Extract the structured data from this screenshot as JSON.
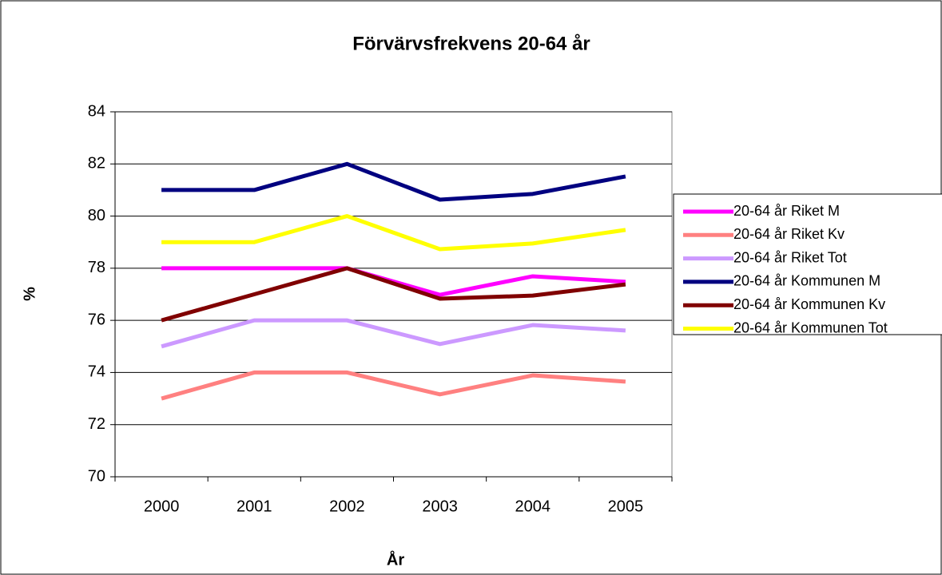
{
  "chart_data": {
    "type": "line",
    "title": "Förvärvsfrekvens 20-64 år",
    "x_label": "År",
    "y_label": "%",
    "categories": [
      "2000",
      "2001",
      "2002",
      "2003",
      "2004",
      "2005"
    ],
    "series": [
      {
        "name": "20-64 år Riket M",
        "color": "#ff00ff",
        "values": [
          78,
          78,
          78,
          76.98,
          77.69,
          77.48
        ]
      },
      {
        "name": "20-64 år Riket Kv",
        "color": "#ff8080",
        "values": [
          73,
          74,
          74,
          73.16,
          73.89,
          73.65
        ]
      },
      {
        "name": "20-64 år Riket Tot",
        "color": "#cc99ff",
        "values": [
          75,
          76,
          76,
          75.09,
          75.82,
          75.61
        ]
      },
      {
        "name": "20-64 år Kommunen M",
        "color": "#000080",
        "values": [
          81,
          81,
          82,
          80.63,
          80.85,
          81.52
        ]
      },
      {
        "name": "20-64 år Kommunen Kv",
        "color": "#800000",
        "values": [
          76,
          77,
          78,
          76.83,
          76.95,
          77.38
        ]
      },
      {
        "name": "20-64 år Kommunen Tot",
        "color": "#ffff00",
        "values": [
          79,
          79,
          80,
          78.73,
          78.95,
          79.47
        ]
      }
    ],
    "ylim": [
      70,
      84
    ],
    "yticks": [
      70,
      72,
      74,
      76,
      78,
      80,
      82,
      84
    ],
    "grid": true
  }
}
